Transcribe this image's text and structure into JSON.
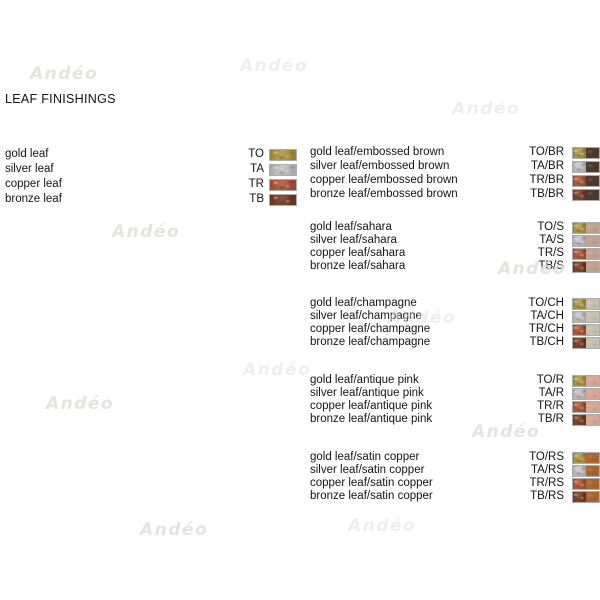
{
  "title": "LEAF FINISHINGS",
  "watermark": {
    "text": "Andéo",
    "color": "#dde1da"
  },
  "base_finishes": [
    {
      "label": "gold leaf",
      "code": "TO",
      "color": "#b1983f"
    },
    {
      "label": "silver leaf",
      "code": "TA",
      "color": "#c6c6c8"
    },
    {
      "label": "copper leaf",
      "code": "TR",
      "color": "#b25536"
    },
    {
      "label": "bronze leaf",
      "code": "TB",
      "color": "#7a3a1e"
    }
  ],
  "combo_groups": [
    {
      "finish": "embossed brown",
      "finish_code": "BR",
      "finish_color": "#4c392b",
      "rows": [
        {
          "label": "gold leaf/embossed brown",
          "code": "TO/BR"
        },
        {
          "label": "silver leaf/embossed brown",
          "code": "TA/BR"
        },
        {
          "label": "copper leaf/embossed brown",
          "code": "TR/BR"
        },
        {
          "label": "bronze leaf/embossed brown",
          "code": "TB/BR"
        }
      ]
    },
    {
      "finish": "sahara",
      "finish_code": "S",
      "finish_color": "#c1a28e",
      "rows": [
        {
          "label": "gold leaf/sahara",
          "code": "TO/S"
        },
        {
          "label": "silver leaf/sahara",
          "code": "TA/S"
        },
        {
          "label": "copper leaf/sahara",
          "code": "TR/S"
        },
        {
          "label": "bronze leaf/sahara",
          "code": "TB/S"
        }
      ]
    },
    {
      "finish": "champagne",
      "finish_code": "CH",
      "finish_color": "#c7c0b2",
      "rows": [
        {
          "label": "gold leaf/champagne",
          "code": "TO/CH"
        },
        {
          "label": "silver leaf/champagne",
          "code": "TA/CH"
        },
        {
          "label": "copper leaf/champagne",
          "code": "TR/CH"
        },
        {
          "label": "bronze leaf/champagne",
          "code": "TB/CH"
        }
      ]
    },
    {
      "finish": "antique pink",
      "finish_code": "R",
      "finish_color": "#d7a695",
      "rows": [
        {
          "label": "gold leaf/antique pink",
          "code": "TO/R"
        },
        {
          "label": "silver leaf/antique pink",
          "code": "TA/R"
        },
        {
          "label": "copper leaf/antique pink",
          "code": "TR/R"
        },
        {
          "label": "bronze leaf/antique pink",
          "code": "TB/R"
        }
      ]
    },
    {
      "finish": "satin copper",
      "finish_code": "RS",
      "finish_color": "#a8652f",
      "rows": [
        {
          "label": "gold leaf/satin copper",
          "code": "TO/RS"
        },
        {
          "label": "silver leaf/satin copper",
          "code": "TA/RS"
        },
        {
          "label": "copper leaf/satin copper",
          "code": "TR/RS"
        },
        {
          "label": "bronze leaf/satin copper",
          "code": "TB/RS"
        }
      ]
    }
  ]
}
